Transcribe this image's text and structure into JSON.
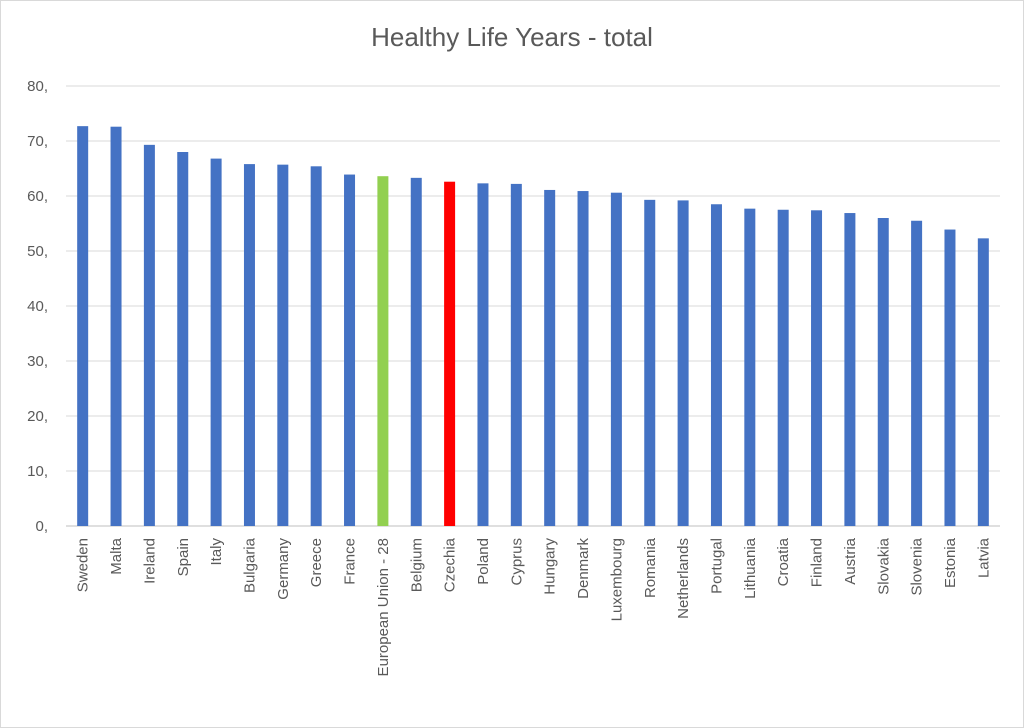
{
  "chart_data": {
    "type": "bar",
    "title": "Healthy Life Years - total",
    "xlabel": "",
    "ylabel": "",
    "ylim": [
      0,
      80
    ],
    "yticks": [
      "0,",
      "10,",
      "20,",
      "30,",
      "40,",
      "50,",
      "60,",
      "70,",
      "80,"
    ],
    "grid": true,
    "categories": [
      "Sweden",
      "Malta",
      "Ireland",
      "Spain",
      "Italy",
      "Bulgaria",
      "Germany",
      "Greece",
      "France",
      "European Union - 28",
      "Belgium",
      "Czechia",
      "Poland",
      "Cyprus",
      "Hungary",
      "Denmark",
      "Luxembourg",
      "Romania",
      "Netherlands",
      "Portugal",
      "Lithuania",
      "Croatia",
      "Finland",
      "Austria",
      "Slovakia",
      "Slovenia",
      "Estonia",
      "Latvia"
    ],
    "values": [
      72.7,
      72.6,
      69.3,
      68.0,
      66.8,
      65.8,
      65.7,
      65.4,
      63.9,
      63.6,
      63.3,
      62.6,
      62.3,
      62.2,
      61.1,
      60.9,
      60.6,
      59.3,
      59.2,
      58.5,
      57.7,
      57.5,
      57.4,
      56.9,
      56.0,
      55.5,
      53.9,
      52.3
    ],
    "colors": {
      "default": "#4472c4",
      "European Union - 28": "#92d050",
      "Czechia": "#ff0000"
    }
  }
}
